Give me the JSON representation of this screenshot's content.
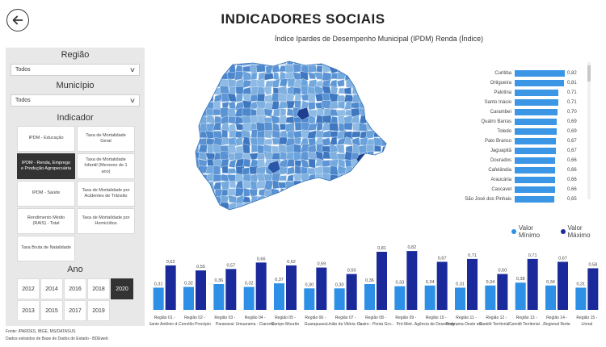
{
  "header": {
    "title": "INDICADORES SOCIAIS"
  },
  "chart_title": "Índice Ipardes de Desempenho Municipal (IPDM) Renda (Índice)",
  "sidebar": {
    "regiao": {
      "title": "Região",
      "value": "Todos"
    },
    "municipio": {
      "title": "Município",
      "value": "Todos"
    },
    "indicador": {
      "title": "Indicador",
      "items": [
        {
          "label": "IPDM - Educação",
          "active": false
        },
        {
          "label": "Taxa de Mortalidade Geral",
          "active": false
        },
        {
          "label": "IPDM - Renda, Emprego e Produção Agropecuária",
          "active": true
        },
        {
          "label": "Taxa de Mortalidade Infantil (Menores de 1 ano)",
          "active": false
        },
        {
          "label": "IPDM - Saúde",
          "active": false
        },
        {
          "label": "Taxa de Mortalidade por Acidentes de Trânsito",
          "active": false
        },
        {
          "label": "Rendimento Médio (RAIS) - Total",
          "active": false
        },
        {
          "label": "Taxa de Mortalidade por Homicídios",
          "active": false
        },
        {
          "label": "Taxa Bruta de Natalidade",
          "active": false
        }
      ]
    },
    "ano": {
      "title": "Ano",
      "years": [
        "2012",
        "2014",
        "2016",
        "2018",
        "2020",
        "2013",
        "2015",
        "2017",
        "2019"
      ],
      "active": "2020"
    }
  },
  "source": {
    "line1": "Fonte: IPARDES, IBGE, MS/DATASUS",
    "line2": "Dados extraídos de Base de Dados do Estado - BDEweb"
  },
  "ranking": [
    {
      "name": "Curitiba",
      "value": "0,82"
    },
    {
      "name": "Ortigueira",
      "value": "0,81"
    },
    {
      "name": "Palotina",
      "value": "0,71"
    },
    {
      "name": "Santo Inácio",
      "value": "0,71"
    },
    {
      "name": "Carambeí",
      "value": "0,70"
    },
    {
      "name": "Quatro Barras",
      "value": "0,69"
    },
    {
      "name": "Toledo",
      "value": "0,69"
    },
    {
      "name": "Pato Branco",
      "value": "0,67"
    },
    {
      "name": "Jaguapitã",
      "value": "0,67"
    },
    {
      "name": "Dourados",
      "value": "0,66"
    },
    {
      "name": "Cafelândia",
      "value": "0,66"
    },
    {
      "name": "Araucária",
      "value": "0,66"
    },
    {
      "name": "Cascavel",
      "value": "0,66"
    },
    {
      "name": "São José dos Pinhais",
      "value": "0,65"
    }
  ],
  "legend": {
    "min": "Valor Mínimo",
    "max": "Valor Máximo"
  },
  "colors": {
    "min": "#2e8fe6",
    "max": "#1a2a9a",
    "rank_bar": "#3b96e6",
    "active": "#333333"
  },
  "chart_data": {
    "type": "bar",
    "categories": [
      "Região 01 - Santo Antônio d...",
      "Região 02 - Cornélio Procópio",
      "Região 03 - Paranavaí",
      "Região 04 - Umuarama - Cianorte",
      "Região 05 - Campo Mourão",
      "Região 06 - Guarapuava",
      "Região 07 - União da Vitória - Ir...",
      "Região 08 - Castro - Ponta Gro...",
      "Região 09 - Pró-Metr...",
      "Região 10 - Agência de Desenvolv...",
      "Região 11 - Programa Oeste em ...",
      "Região 12 - Comitê Territorial ...",
      "Região 13 - Comitê Territorial ...",
      "Região 14 - Regional Norte",
      "Região 15 - Litoral"
    ],
    "series": [
      {
        "name": "Valor Mínimo",
        "values": [
          0.31,
          0.32,
          0.36,
          0.32,
          0.37,
          0.3,
          0.3,
          0.36,
          0.33,
          0.34,
          0.31,
          0.34,
          0.38,
          0.34,
          0.31
        ],
        "labels": [
          "0,31",
          "0,32",
          "0,36",
          "0,32",
          "0,37",
          "0,30",
          "0,30",
          "0,36",
          "0,33",
          "0,34",
          "0,31",
          "0,34",
          "0,38",
          "0,34",
          "0,31"
        ]
      },
      {
        "name": "Valor Máximo",
        "values": [
          0.62,
          0.55,
          0.57,
          0.66,
          0.62,
          0.59,
          0.5,
          0.81,
          0.82,
          0.67,
          0.71,
          0.5,
          0.71,
          0.67,
          0.58
        ],
        "labels": [
          "0,62",
          "0,55",
          "0,57",
          "0,66",
          "0,62",
          "0,59",
          "0,50",
          "0,81",
          "0,82",
          "0,67",
          "0,71",
          "0,50",
          "0,71",
          "0,67",
          "0,58"
        ]
      }
    ],
    "ylim": [
      0,
      0.9
    ]
  }
}
